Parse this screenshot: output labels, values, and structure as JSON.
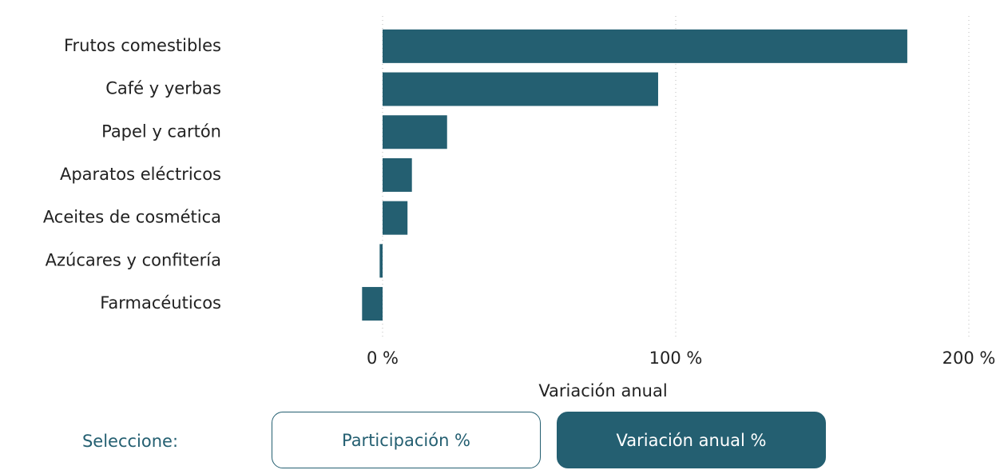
{
  "chart_data": {
    "type": "barh",
    "color": "#245f71",
    "categories": [
      "Frutos comestibles",
      "Café y yerbas",
      "Papel y cartón",
      "Aparatos eléctricos",
      "Aceites de cosmética",
      "Azúcares y confitería",
      "Farmacéuticos"
    ],
    "values": [
      179,
      94,
      22,
      10,
      8.5,
      -1,
      -7
    ],
    "xlim": [
      -10,
      200
    ],
    "xticks": [
      {
        "value": 0,
        "label": "0 %"
      },
      {
        "value": 100,
        "label": "100 %"
      },
      {
        "value": 200,
        "label": "200 %"
      }
    ],
    "xlabel": "Variación anual",
    "grid": true
  },
  "controls": {
    "label": "Seleccione:",
    "options": [
      "Participación %",
      "Variación anual %"
    ],
    "selected": 1
  }
}
